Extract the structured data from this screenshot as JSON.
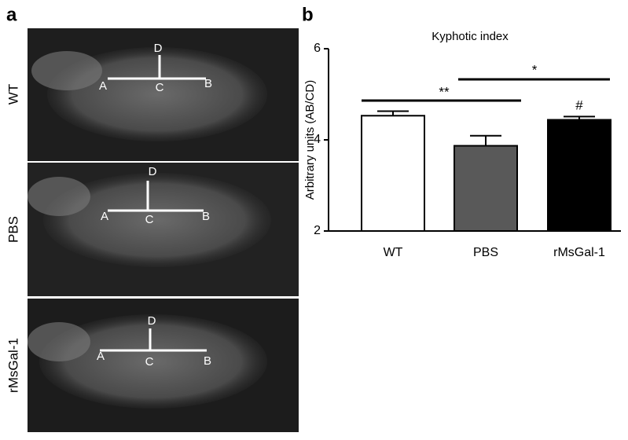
{
  "figure": {
    "panel_a": "a",
    "panel_b": "b",
    "images": [
      {
        "name": "WT",
        "points": [
          "A",
          "B",
          "C",
          "D"
        ]
      },
      {
        "name": "PBS",
        "points": [
          "A",
          "B",
          "C",
          "D"
        ]
      },
      {
        "name": "rMsGal-1",
        "points": [
          "A",
          "B",
          "C",
          "D"
        ]
      }
    ]
  },
  "chart_data": {
    "type": "bar",
    "title": "Kyphotic index",
    "ylabel": "Arbitrary units (AB/CD)",
    "categories": [
      "WT",
      "PBS",
      "rMsGal-1"
    ],
    "values": [
      4.53,
      3.87,
      4.44
    ],
    "errors": [
      0.1,
      0.22,
      0.07
    ],
    "colors": [
      "#ffffff",
      "#595959",
      "#000000"
    ],
    "ylim": [
      2,
      6
    ],
    "yticks": [
      2,
      4,
      6
    ],
    "annotations": [
      "**",
      "*",
      "#"
    ]
  }
}
